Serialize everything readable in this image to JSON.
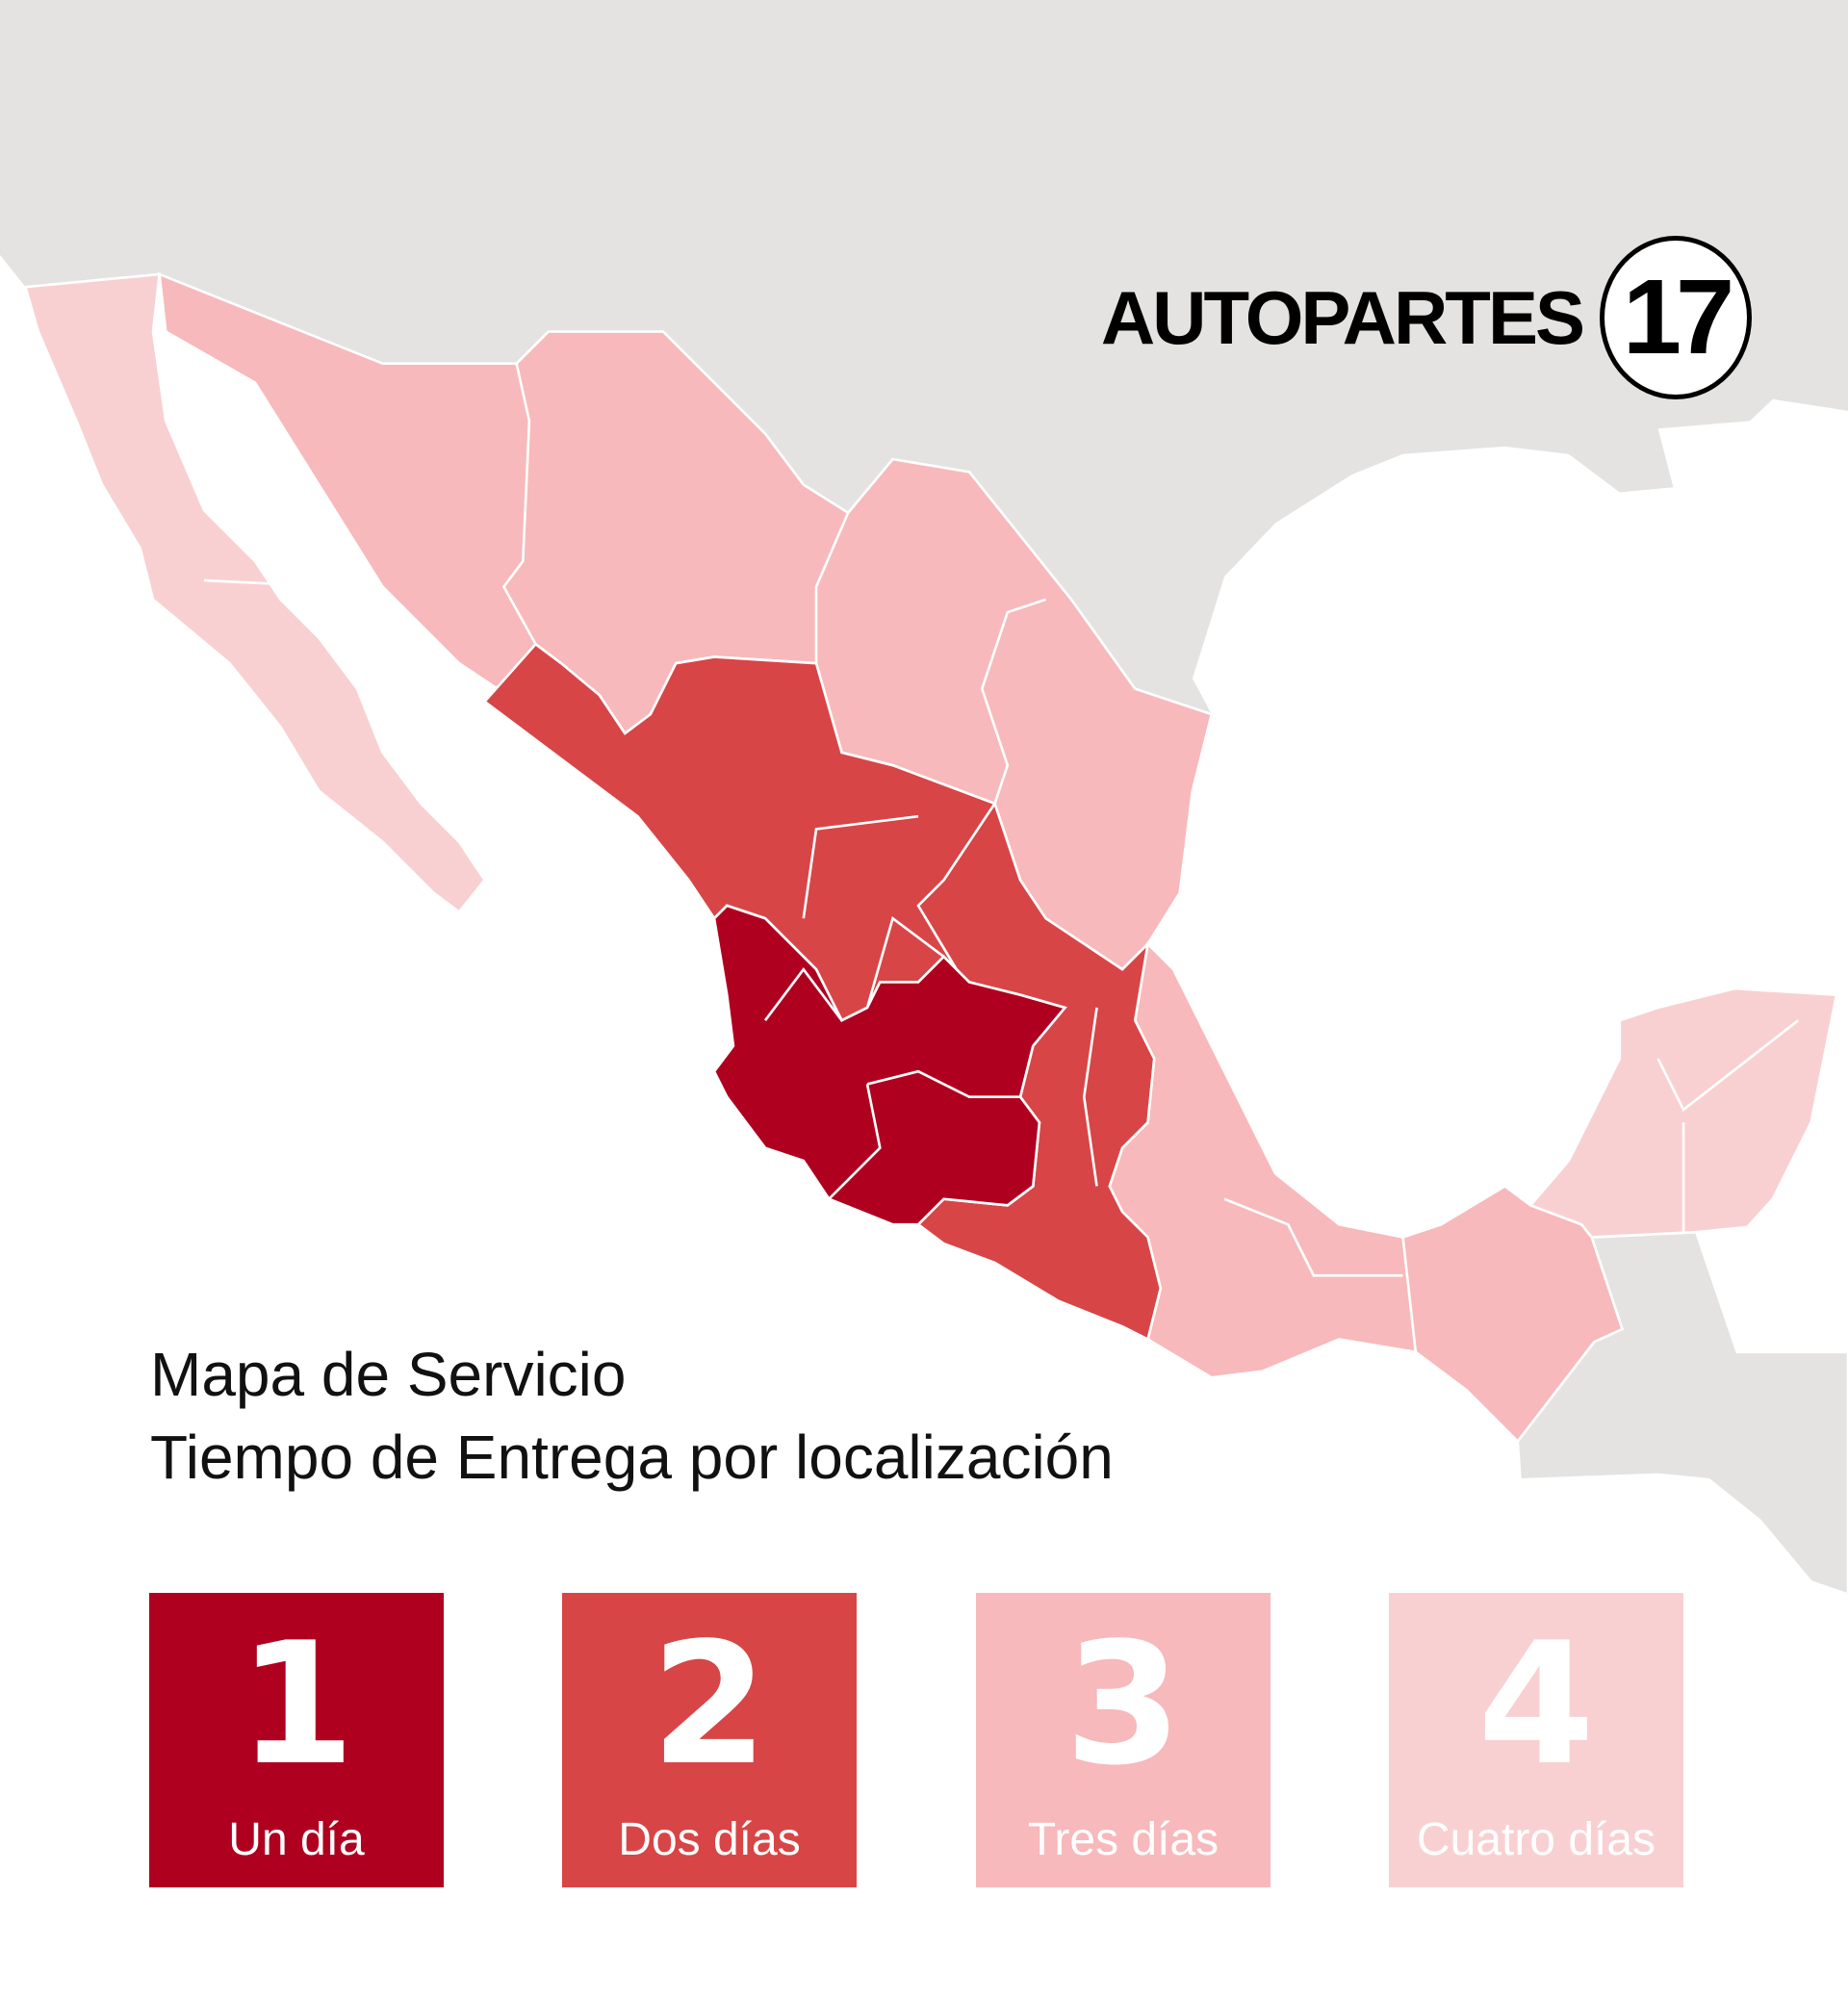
{
  "logo": {
    "brand": "AUTOPARTES",
    "number": "17"
  },
  "title": {
    "line1": "Mapa de Servicio",
    "line2": "Tiempo de Entrega por localización"
  },
  "colors": {
    "ocean": "#ffffff",
    "foreign_land": "#e4e3e2",
    "border": "#ffffff"
  },
  "legend": [
    {
      "number": "1",
      "label": "Un día",
      "color": "#b00020"
    },
    {
      "number": "2",
      "label": "Dos días",
      "color": "#d84546"
    },
    {
      "number": "3",
      "label": "Tres días",
      "color": "#f7b9bb"
    },
    {
      "number": "4",
      "label": "Cuatro días",
      "color": "#f9d0d2"
    }
  ]
}
